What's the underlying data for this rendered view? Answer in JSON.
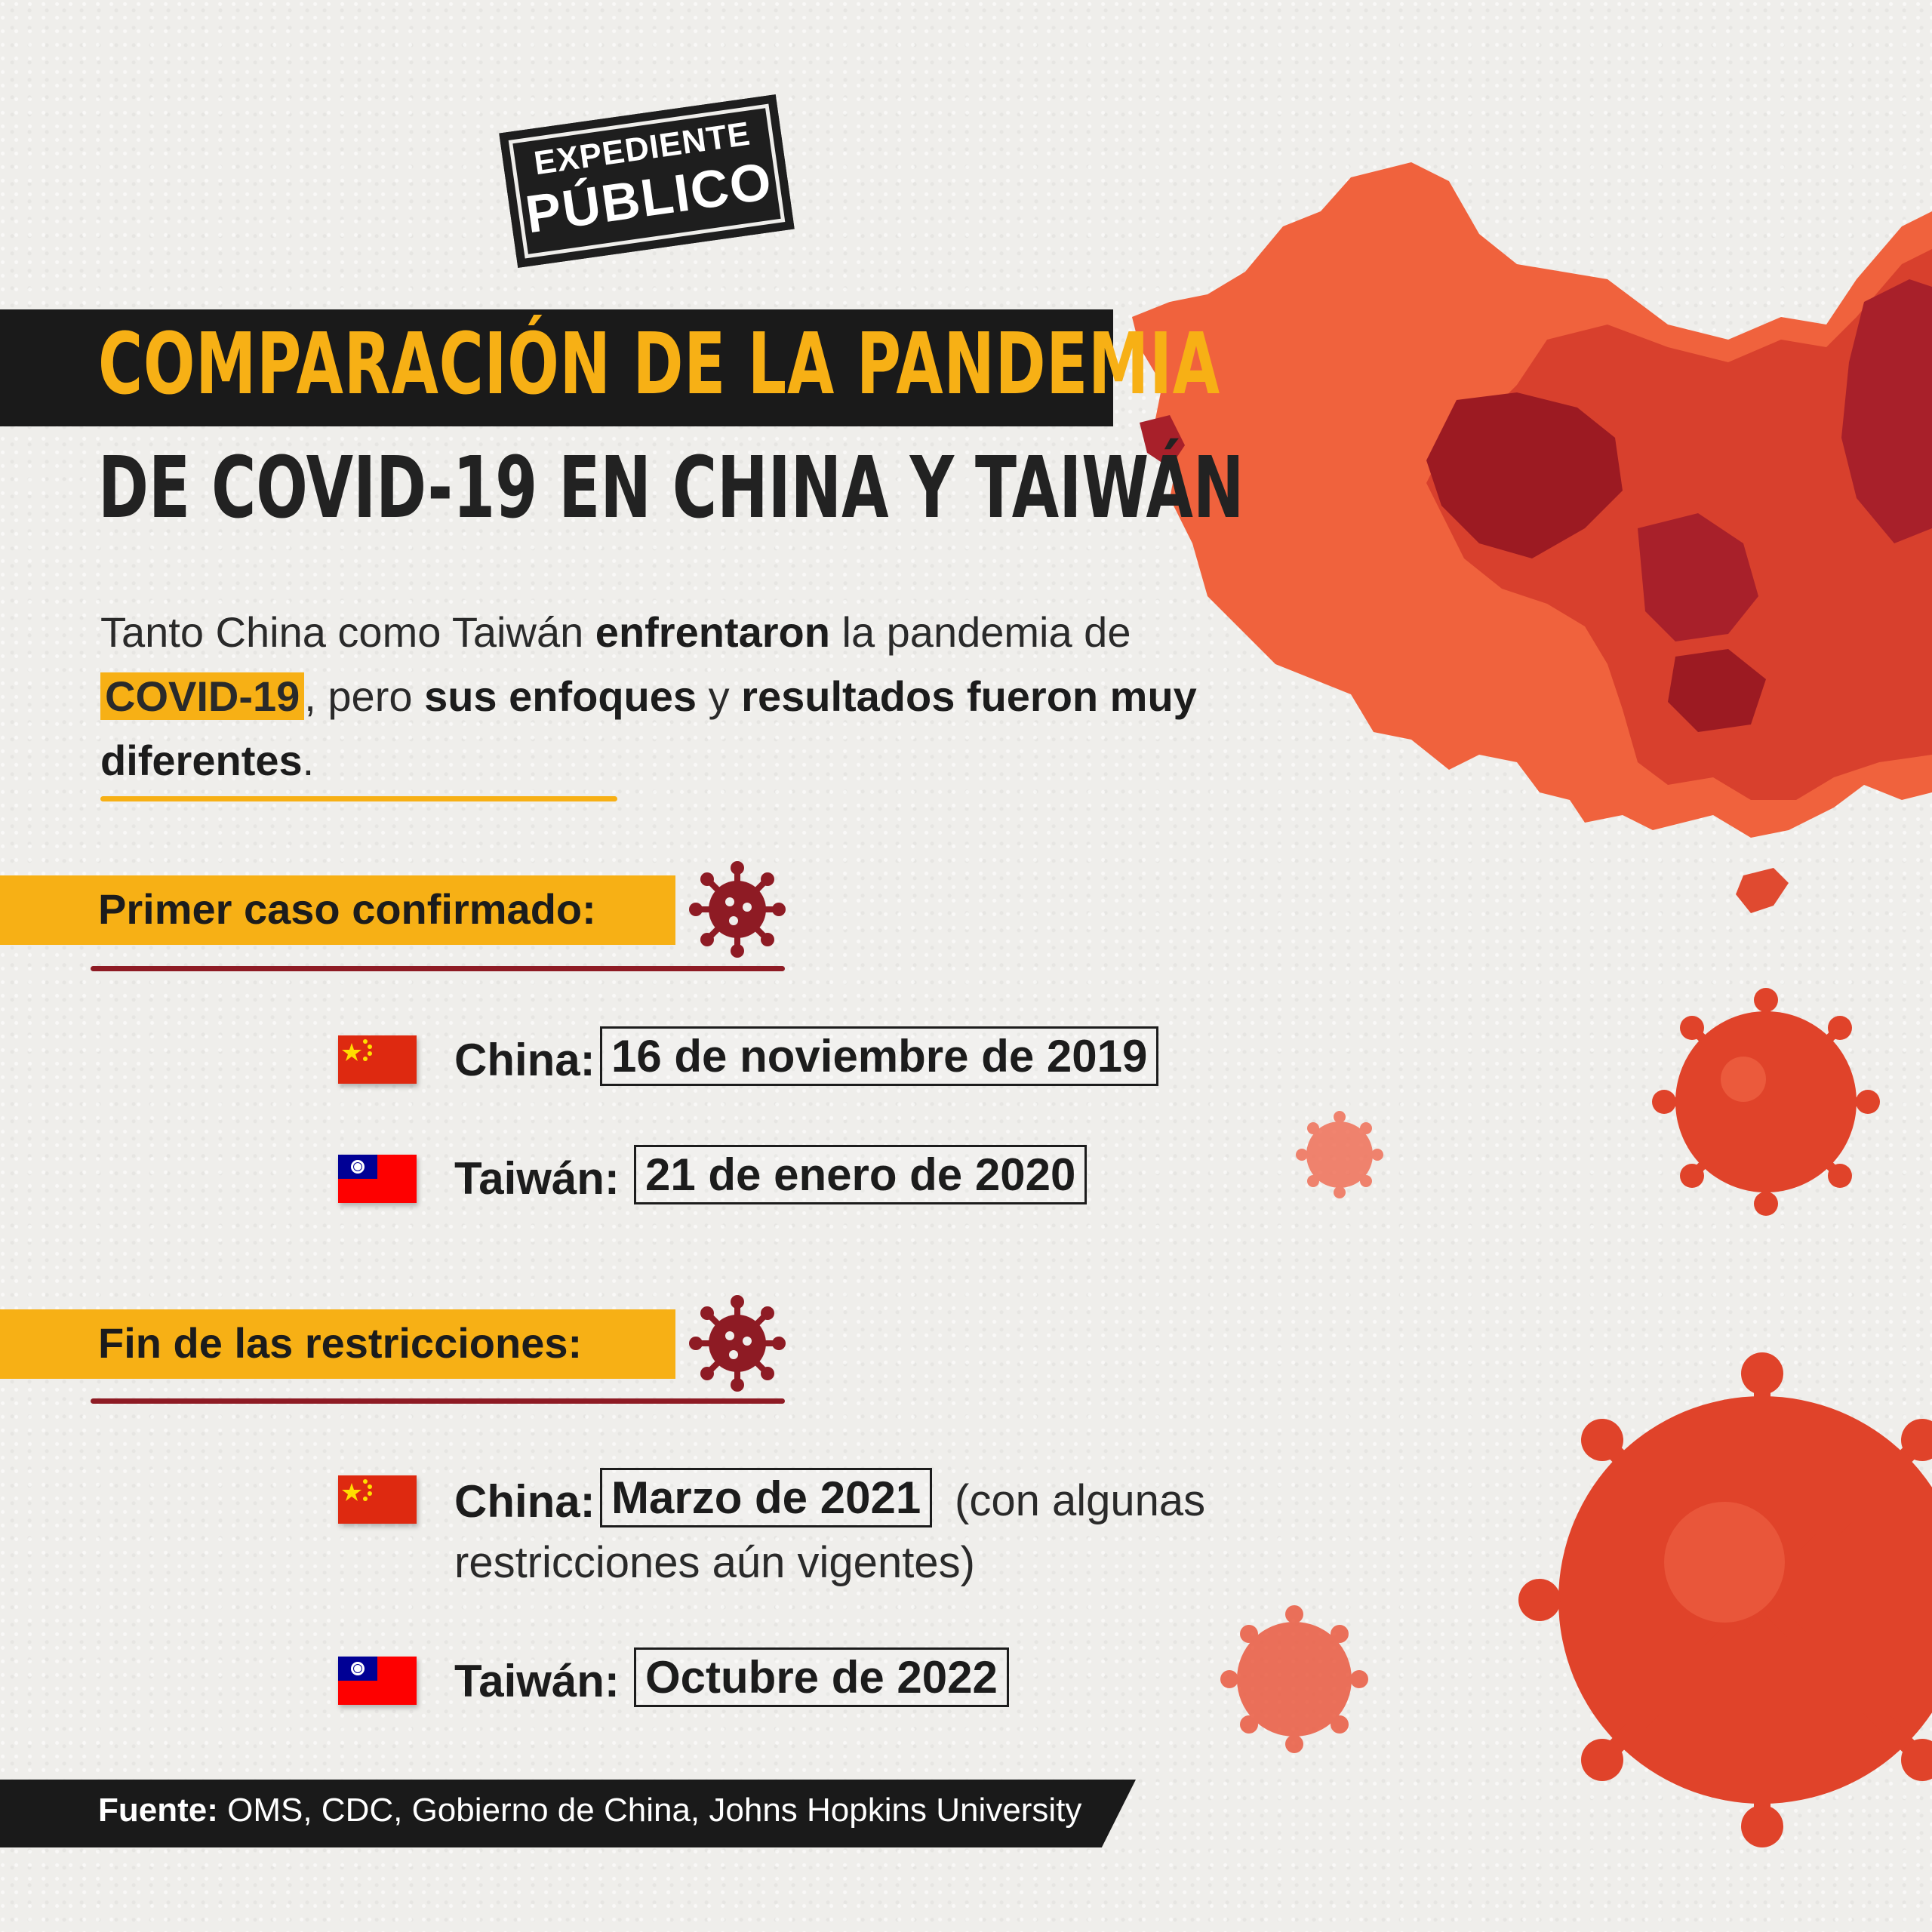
{
  "logo": {
    "line1": "EXPEDIENTE",
    "line2": "PÚBLICO"
  },
  "title": {
    "line1": "COMPARACIÓN DE LA PANDEMIA",
    "line2": "DE COVID-19 EN CHINA Y TAIWÁN"
  },
  "intro": {
    "p1": "Tanto China como Taiwán ",
    "p1_bold": "enfrentaron",
    "p2": " la pandemia de ",
    "p2_highlight": "COVID-19",
    "p3": ", pero ",
    "p3_bold": "sus enfoques",
    "p4": " y ",
    "p4_bold": "resultados fueron muy diferentes",
    "p5": "."
  },
  "sections": {
    "first_case": {
      "label": "Primer caso confirmado:",
      "china_label": "China:",
      "china_value": "16 de noviembre de 2019",
      "taiwan_label": "Taiwán:",
      "taiwan_value": "21 de enero de 2020"
    },
    "end_restrictions": {
      "label": "Fin de las restricciones:",
      "china_label": "China:",
      "china_value": "Marzo de 2021",
      "china_note_1": "(con algunas",
      "china_note_2": "restricciones aún vigentes)",
      "taiwan_label": "Taiwán:",
      "taiwan_value": "Octubre de 2022"
    }
  },
  "source": {
    "label": "Fuente:",
    "text": " OMS, CDC, Gobierno de China, Johns Hopkins University"
  },
  "colors": {
    "accent_yellow": "#f7b015",
    "dark": "#1a1a1a",
    "maroon": "#8e1b24",
    "map_light": "#f0623d",
    "map_mid": "#d8402d",
    "map_dark": "#9c1a22"
  },
  "icons": [
    "virus-icon",
    "china-flag-icon",
    "taiwan-flag-icon",
    "china-map-illustration",
    "coronavirus-illustration"
  ]
}
